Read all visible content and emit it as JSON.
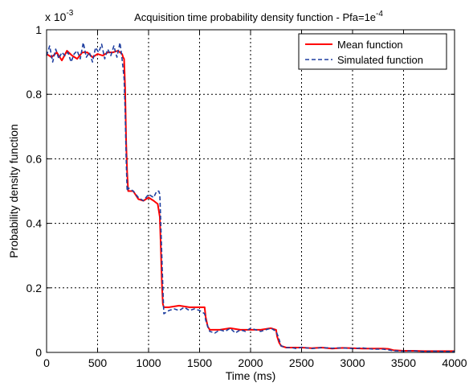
{
  "chart_data": {
    "type": "line",
    "title": "Acquisition time probability density function - Pfa=1e",
    "title_superscript": "-4",
    "xlabel": "Time (ms)",
    "ylabel": "Probability density function",
    "y_multiplier_base": "x 10",
    "y_multiplier_exponent": "-3",
    "xlim": [
      0,
      4000
    ],
    "ylim": [
      0,
      1
    ],
    "x_ticks": [
      0,
      500,
      1000,
      1500,
      2000,
      2500,
      3000,
      3500,
      4000
    ],
    "y_ticks": [
      0,
      0.2,
      0.4,
      0.6,
      0.8,
      1
    ],
    "x_tick_labels": [
      "0",
      "500",
      "1000",
      "1500",
      "2000",
      "2500",
      "3000",
      "3500",
      "4000"
    ],
    "y_tick_labels": [
      "0",
      "0.2",
      "0.4",
      "0.6",
      "0.8",
      "1"
    ],
    "grid": true,
    "legend_position": "top-right",
    "series": [
      {
        "name": "Mean function",
        "color": "#ff0000",
        "line_style": "solid",
        "x": [
          0,
          50,
          100,
          150,
          200,
          250,
          300,
          350,
          400,
          450,
          500,
          550,
          600,
          650,
          700,
          740,
          750,
          760,
          770,
          780,
          790,
          800,
          850,
          900,
          950,
          1000,
          1050,
          1090,
          1110,
          1120,
          1130,
          1140,
          1150,
          1200,
          1300,
          1400,
          1500,
          1550,
          1560,
          1580,
          1600,
          1700,
          1800,
          1900,
          2000,
          2100,
          2200,
          2250,
          2260,
          2280,
          2300,
          2350,
          2400,
          2500,
          2600,
          2700,
          2800,
          2900,
          3000,
          3100,
          3200,
          3300,
          3350,
          3400,
          3500,
          3600,
          3700,
          3800,
          3900,
          4000
        ],
        "y": [
          0.925,
          0.915,
          0.93,
          0.905,
          0.935,
          0.92,
          0.91,
          0.93,
          0.93,
          0.915,
          0.925,
          0.92,
          0.93,
          0.93,
          0.935,
          0.925,
          0.915,
          0.91,
          0.82,
          0.65,
          0.56,
          0.5,
          0.5,
          0.475,
          0.47,
          0.48,
          0.47,
          0.46,
          0.42,
          0.33,
          0.22,
          0.15,
          0.14,
          0.14,
          0.145,
          0.14,
          0.14,
          0.14,
          0.11,
          0.08,
          0.07,
          0.07,
          0.075,
          0.07,
          0.07,
          0.07,
          0.075,
          0.07,
          0.05,
          0.03,
          0.02,
          0.015,
          0.015,
          0.015,
          0.013,
          0.015,
          0.012,
          0.014,
          0.013,
          0.012,
          0.012,
          0.012,
          0.011,
          0.007,
          0.005,
          0.005,
          0.004,
          0.004,
          0.004,
          0.004
        ]
      },
      {
        "name": "Simulated function",
        "color": "#1f3fa0",
        "line_style": "dashed",
        "x": [
          0,
          30,
          60,
          90,
          120,
          150,
          180,
          210,
          240,
          270,
          300,
          330,
          360,
          390,
          420,
          450,
          480,
          510,
          540,
          570,
          600,
          630,
          660,
          690,
          720,
          740,
          760,
          770,
          780,
          790,
          800,
          850,
          900,
          950,
          1000,
          1050,
          1080,
          1100,
          1110,
          1120,
          1130,
          1140,
          1150,
          1200,
          1250,
          1300,
          1350,
          1400,
          1450,
          1500,
          1550,
          1560,
          1580,
          1600,
          1650,
          1700,
          1750,
          1800,
          1850,
          1900,
          1950,
          2000,
          2050,
          2100,
          2150,
          2200,
          2250,
          2270,
          2290,
          2300,
          2350,
          2400,
          2450,
          2500,
          2600,
          2700,
          2800,
          2900,
          3000,
          3100,
          3200,
          3300,
          3350,
          3400,
          3500,
          3600,
          3700,
          3800,
          3900,
          4000
        ],
        "y": [
          0.92,
          0.95,
          0.9,
          0.94,
          0.91,
          0.93,
          0.92,
          0.93,
          0.9,
          0.925,
          0.935,
          0.91,
          0.96,
          0.915,
          0.93,
          0.9,
          0.945,
          0.93,
          0.955,
          0.91,
          0.94,
          0.92,
          0.95,
          0.915,
          0.96,
          0.91,
          0.85,
          0.75,
          0.6,
          0.5,
          0.51,
          0.5,
          0.48,
          0.47,
          0.49,
          0.48,
          0.5,
          0.5,
          0.49,
          0.4,
          0.3,
          0.2,
          0.12,
          0.13,
          0.135,
          0.13,
          0.14,
          0.13,
          0.135,
          0.13,
          0.12,
          0.1,
          0.08,
          0.065,
          0.06,
          0.07,
          0.065,
          0.075,
          0.06,
          0.07,
          0.065,
          0.075,
          0.07,
          0.065,
          0.07,
          0.075,
          0.065,
          0.05,
          0.03,
          0.02,
          0.015,
          0.015,
          0.012,
          0.016,
          0.012,
          0.015,
          0.013,
          0.014,
          0.012,
          0.014,
          0.01,
          0.01,
          0.008,
          0.005,
          0.004,
          0.005,
          0.003,
          0.004,
          0.003,
          0.003
        ]
      }
    ]
  }
}
